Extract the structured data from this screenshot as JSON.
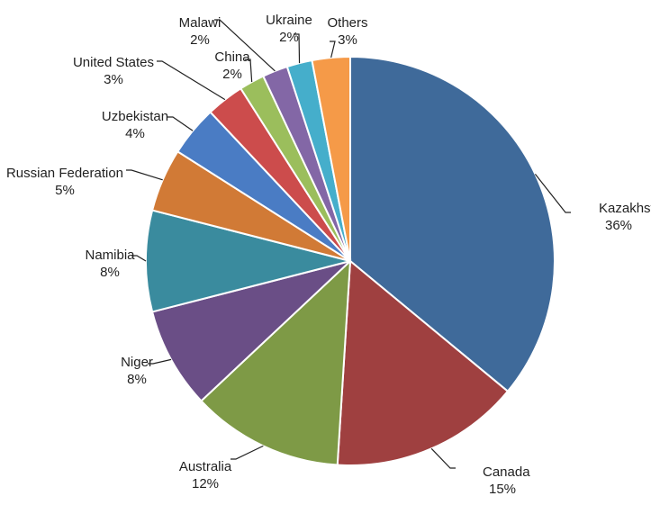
{
  "chart_data": {
    "type": "pie",
    "title": "",
    "start_angle_deg": 0,
    "direction": "clockwise",
    "slices": [
      {
        "label": "Kazakhstan",
        "value": 36,
        "value_label": "36%",
        "color": "#3F6A9A"
      },
      {
        "label": "Canada",
        "value": 15,
        "value_label": "15%",
        "color": "#9F4040"
      },
      {
        "label": "Australia",
        "value": 12,
        "value_label": "12%",
        "color": "#7E9A46"
      },
      {
        "label": "Niger",
        "value": 8,
        "value_label": "8%",
        "color": "#6A4E86"
      },
      {
        "label": "Namibia",
        "value": 8,
        "value_label": "8%",
        "color": "#3A8B9E"
      },
      {
        "label": "Russian Federation",
        "value": 5,
        "value_label": "5%",
        "color": "#D17A36"
      },
      {
        "label": "Uzbekistan",
        "value": 4,
        "value_label": "4%",
        "color": "#4A7CC4"
      },
      {
        "label": "United States",
        "value": 3,
        "value_label": "3%",
        "color": "#CC4C4C"
      },
      {
        "label": "China",
        "value": 2,
        "value_label": "2%",
        "color": "#9BBE5C"
      },
      {
        "label": "Malawi",
        "value": 2,
        "value_label": "2%",
        "color": "#8367A6"
      },
      {
        "label": "Ukraine",
        "value": 2,
        "value_label": "2%",
        "color": "#45AECB"
      },
      {
        "label": "Others",
        "value": 3,
        "value_label": "3%",
        "color": "#F59A48"
      }
    ]
  }
}
